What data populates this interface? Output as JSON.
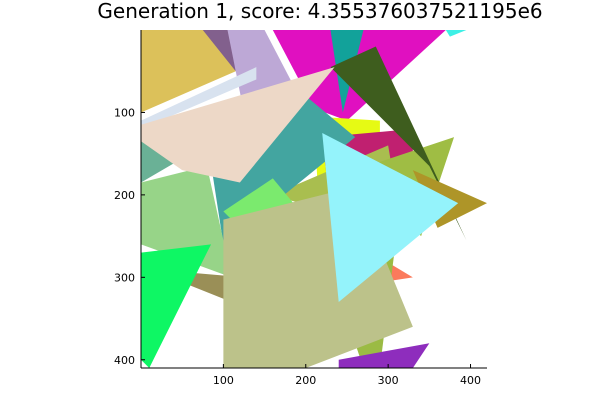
{
  "title": "Generation 1, score: 4.355376037521195e6",
  "canvas": {
    "background": "#ffffff",
    "image_width_units": 420,
    "image_height_units": 410
  },
  "axes": {
    "x_ticks": [
      100,
      200,
      300,
      400
    ],
    "y_ticks": [
      100,
      200,
      300,
      400
    ]
  },
  "triangles": [
    {
      "color": "#9a8f57",
      "points": [
        [
          10,
          290
        ],
        [
          185,
          360
        ],
        [
          240,
          310
        ]
      ]
    },
    {
      "color": "#dcc15a",
      "points": [
        [
          0,
          0
        ],
        [
          110,
          0
        ],
        [
          115,
          50
        ],
        [
          0,
          100
        ]
      ]
    },
    {
      "color": "#82608d",
      "points": [
        [
          75,
          0
        ],
        [
          110,
          0
        ],
        [
          115,
          50
        ]
      ]
    },
    {
      "color": "#e010c0",
      "points": [
        [
          160,
          0
        ],
        [
          370,
          0
        ],
        [
          250,
          110
        ],
        [
          210,
          95
        ]
      ]
    },
    {
      "color": "#12a29a",
      "points": [
        [
          230,
          0
        ],
        [
          270,
          0
        ],
        [
          245,
          100
        ]
      ]
    },
    {
      "color": "#3df0e6",
      "points": [
        [
          370,
          0
        ],
        [
          395,
          0
        ],
        [
          375,
          8
        ]
      ]
    },
    {
      "color": "#bda8d6",
      "points": [
        [
          105,
          0
        ],
        [
          150,
          0
        ],
        [
          210,
          115
        ],
        [
          125,
          100
        ]
      ]
    },
    {
      "color": "#d8e2ef",
      "points": [
        [
          0,
          110
        ],
        [
          140,
          45
        ],
        [
          140,
          60
        ],
        [
          0,
          120
        ]
      ]
    },
    {
      "color": "#e6fa14",
      "points": [
        [
          210,
          105
        ],
        [
          290,
          110
        ],
        [
          290,
          130
        ],
        [
          215,
          200
        ]
      ]
    },
    {
      "color": "#c02070",
      "points": [
        [
          220,
          130
        ],
        [
          330,
          120
        ],
        [
          330,
          150
        ],
        [
          230,
          220
        ]
      ]
    },
    {
      "color": "#a9be4f",
      "points": [
        [
          160,
          200
        ],
        [
          300,
          140
        ],
        [
          320,
          260
        ],
        [
          225,
          220
        ]
      ]
    },
    {
      "color": "#9fbd44",
      "points": [
        [
          260,
          170
        ],
        [
          380,
          130
        ],
        [
          340,
          250
        ]
      ]
    },
    {
      "color": "#3e5d1e",
      "points": [
        [
          230,
          45
        ],
        [
          285,
          20
        ],
        [
          395,
          255
        ],
        [
          350,
          165
        ]
      ]
    },
    {
      "color": "#ae9528",
      "points": [
        [
          330,
          170
        ],
        [
          420,
          210
        ],
        [
          360,
          240
        ]
      ]
    },
    {
      "color": "#6ab196",
      "points": [
        [
          0,
          130
        ],
        [
          60,
          150
        ],
        [
          0,
          185
        ]
      ]
    },
    {
      "color": "#43a5a0",
      "points": [
        [
          80,
          130
        ],
        [
          200,
          80
        ],
        [
          260,
          130
        ],
        [
          100,
          260
        ]
      ]
    },
    {
      "color": "#7bea6e",
      "points": [
        [
          100,
          220
        ],
        [
          160,
          180
        ],
        [
          185,
          210
        ],
        [
          120,
          240
        ]
      ]
    },
    {
      "color": "#97d488",
      "points": [
        [
          0,
          185
        ],
        [
          80,
          165
        ],
        [
          110,
          300
        ],
        [
          0,
          260
        ]
      ]
    },
    {
      "color": "#0ef764",
      "points": [
        [
          0,
          270
        ],
        [
          85,
          260
        ],
        [
          10,
          410
        ],
        [
          0,
          400
        ]
      ]
    },
    {
      "color": "#edd8c7",
      "points": [
        [
          0,
          115
        ],
        [
          235,
          45
        ],
        [
          120,
          185
        ],
        [
          50,
          170
        ],
        [
          0,
          135
        ]
      ]
    },
    {
      "color": "#fb7a5c",
      "points": [
        [
          230,
          240
        ],
        [
          330,
          300
        ],
        [
          265,
          310
        ]
      ]
    },
    {
      "color": "#9bbb44",
      "points": [
        [
          230,
          290
        ],
        [
          310,
          250
        ],
        [
          290,
          410
        ],
        [
          270,
          410
        ]
      ]
    },
    {
      "color": "#8e2dbd",
      "points": [
        [
          240,
          400
        ],
        [
          350,
          380
        ],
        [
          330,
          410
        ],
        [
          240,
          410
        ]
      ]
    },
    {
      "color": "#bcc28a",
      "points": [
        [
          100,
          230
        ],
        [
          260,
          190
        ],
        [
          330,
          360
        ],
        [
          200,
          410
        ],
        [
          100,
          410
        ]
      ]
    },
    {
      "color": "#94f3fb",
      "points": [
        [
          220,
          125
        ],
        [
          385,
          210
        ],
        [
          240,
          330
        ]
      ]
    }
  ]
}
